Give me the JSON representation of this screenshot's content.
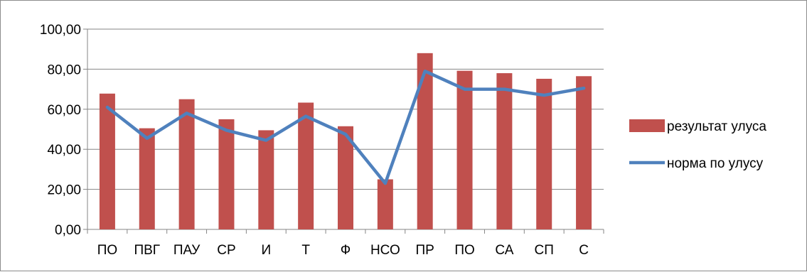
{
  "chart_data": {
    "type": "bar",
    "categories": [
      "ПО",
      "ПВГ",
      "ПАУ",
      "СР",
      "И",
      "Т",
      "Ф",
      "НСО",
      "ПР",
      "ПО",
      "СА",
      "СП",
      "С"
    ],
    "series": [
      {
        "name": "результат улуса",
        "type": "bar",
        "color": "#c0504d",
        "values": [
          67.8,
          50.5,
          65.0,
          55.0,
          49.5,
          63.3,
          51.5,
          25.0,
          88.0,
          79.2,
          78.0,
          75.2,
          76.5
        ]
      },
      {
        "name": "норма по улусу",
        "type": "line",
        "color": "#4f81bd",
        "values": [
          61.0,
          45.5,
          58.0,
          49.5,
          44.5,
          56.5,
          47.5,
          23.0,
          79.0,
          70.0,
          70.0,
          67.0,
          70.5
        ]
      }
    ],
    "y_ticks": [
      "0,00",
      "20,00",
      "40,00",
      "60,00",
      "80,00",
      "100,00"
    ],
    "ylim": [
      0,
      100
    ],
    "grid": true,
    "legend_position": "right"
  }
}
